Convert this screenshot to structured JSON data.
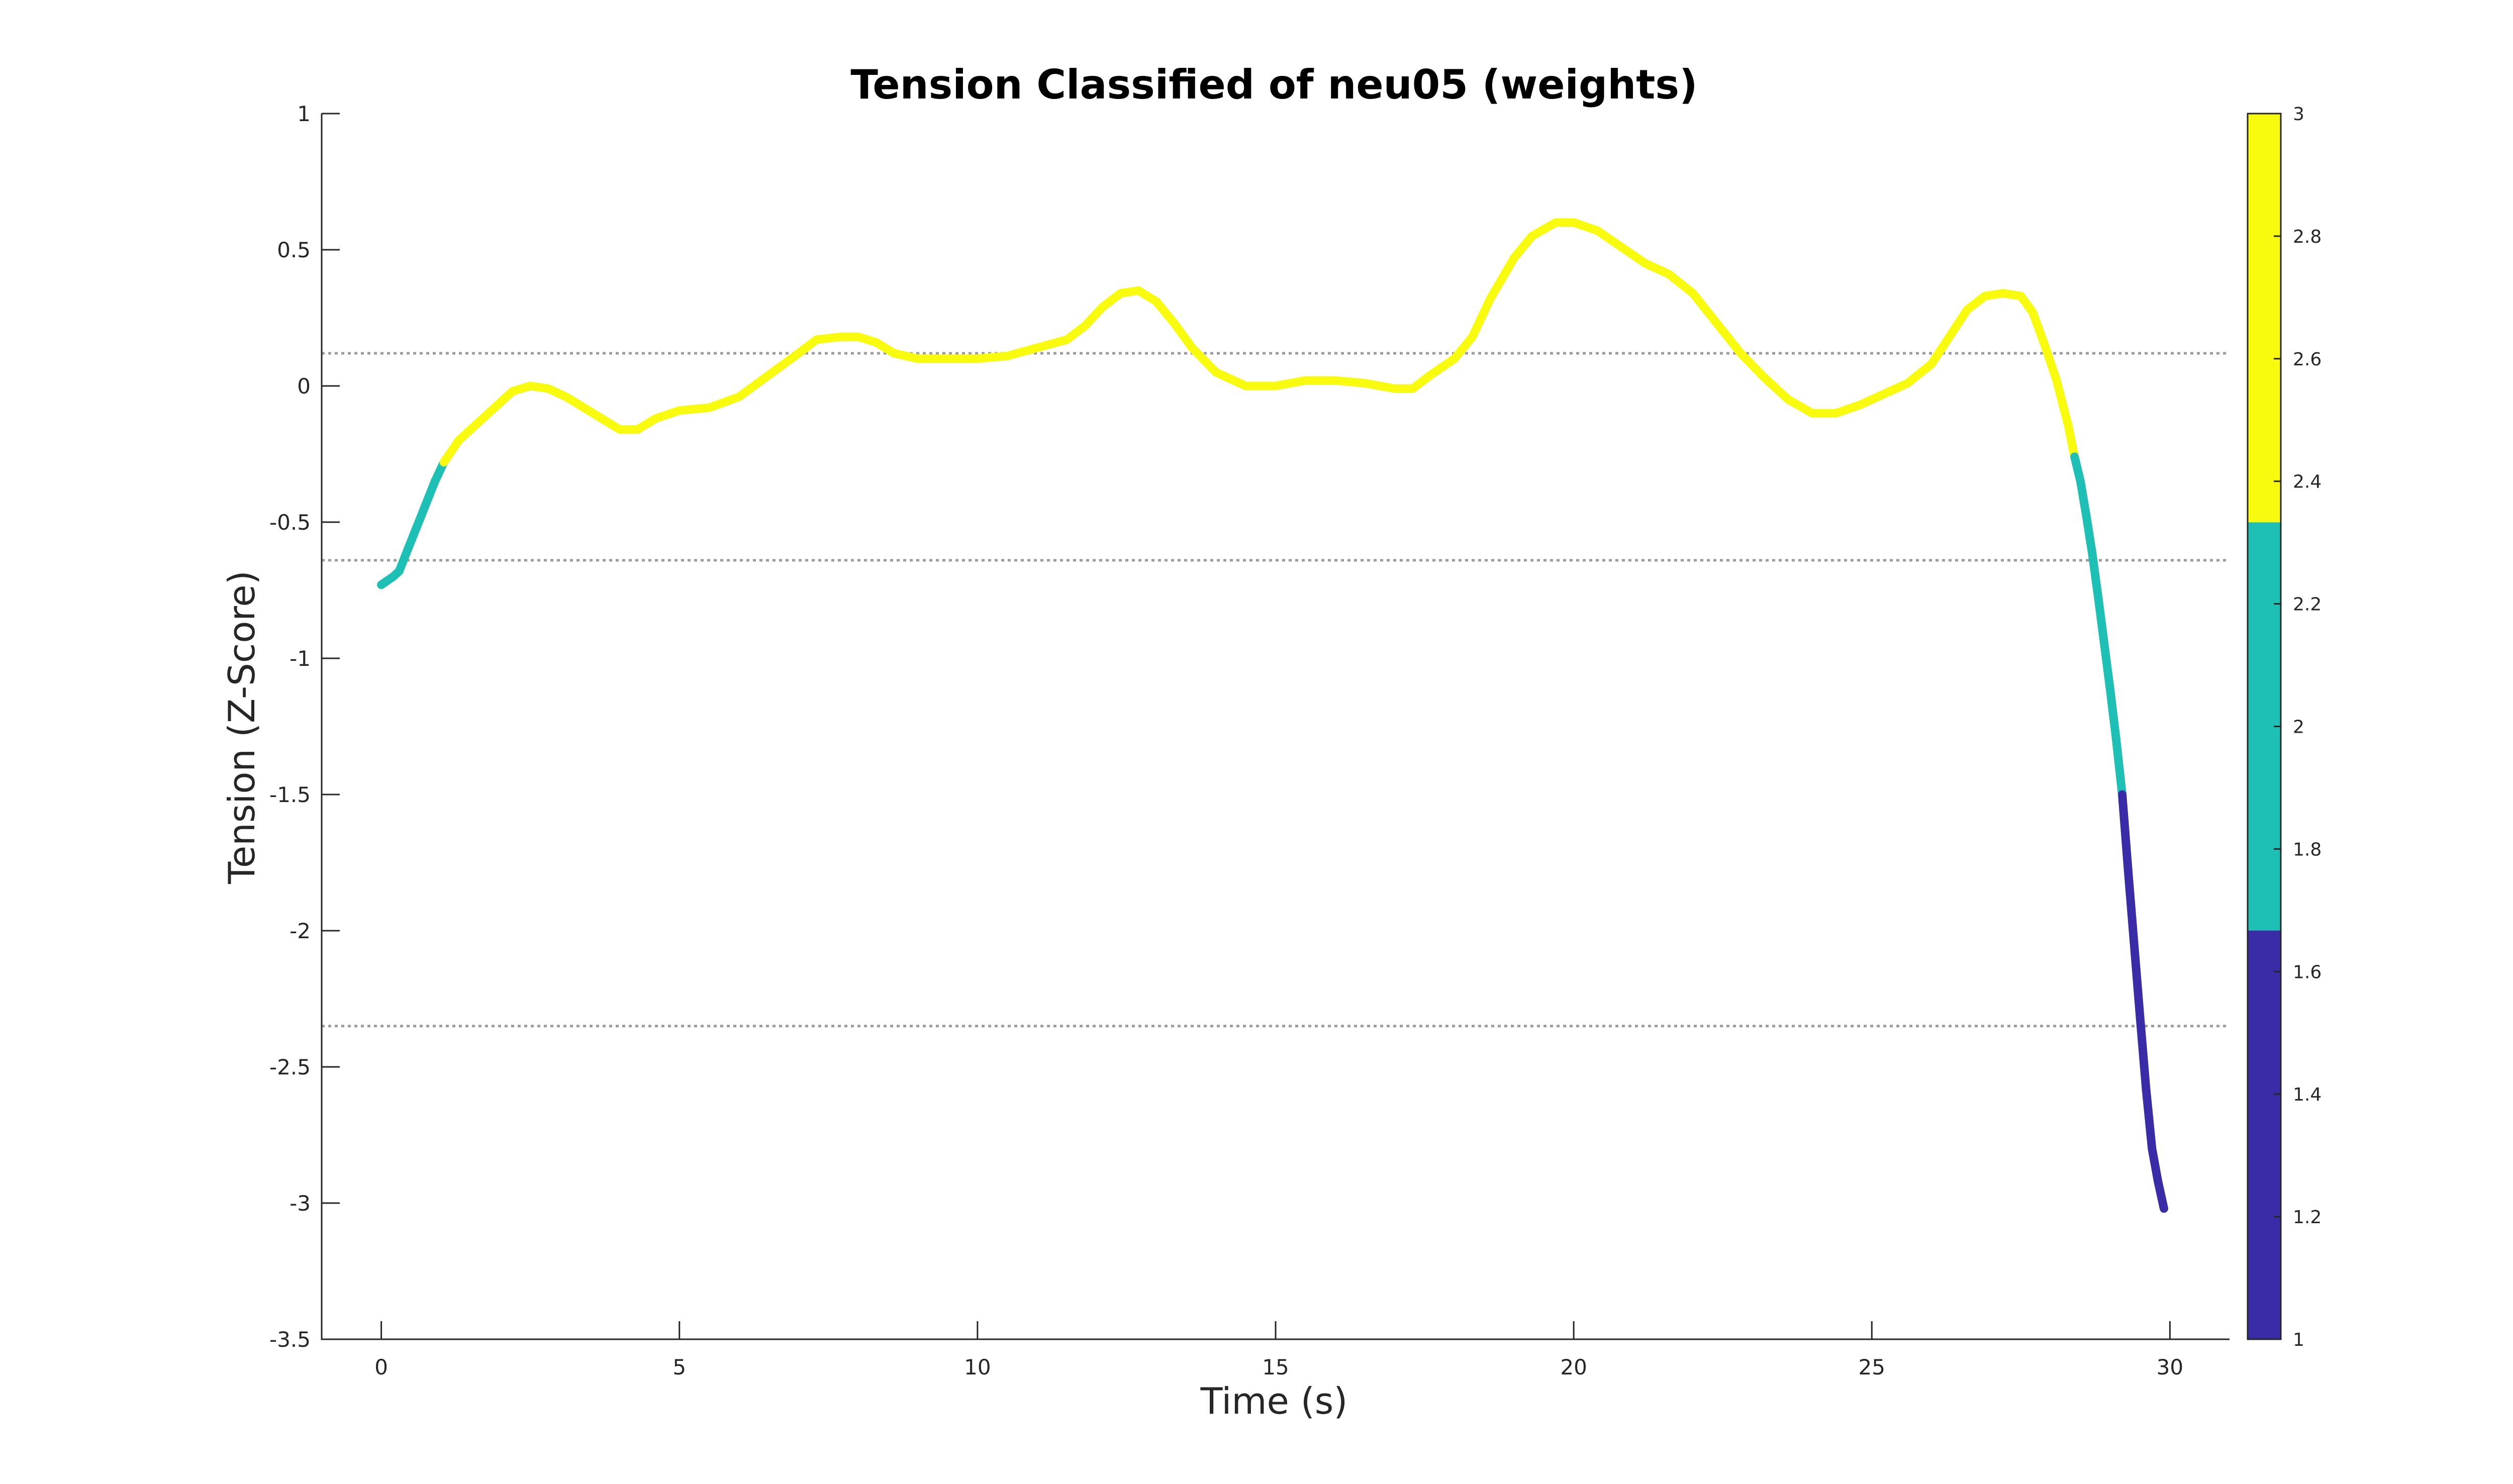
{
  "chart_data": {
    "type": "line",
    "title": "Tension Classified of neu05 (weights)",
    "xlabel": "Time (s)",
    "ylabel": "Tension (Z-Score)",
    "xlim": [
      -1,
      31
    ],
    "ylim": [
      -3.5,
      1
    ],
    "x_ticks": [
      0,
      5,
      10,
      15,
      20,
      25,
      30
    ],
    "y_ticks": [
      1,
      0.5,
      0,
      -0.5,
      -1,
      -1.5,
      -2,
      -2.5,
      -3,
      -3.5
    ],
    "grid": false,
    "thresholds": [
      0.12,
      -0.64,
      -2.35
    ],
    "colorbar": {
      "placement": "right",
      "range": [
        1,
        3
      ],
      "ticks": [
        3,
        2.8,
        2.6,
        2.4,
        2.2,
        2,
        1.8,
        1.6,
        1.4,
        1.2,
        1
      ],
      "bands": [
        {
          "from": 2.333,
          "to": 3,
          "color": "#f9fb0e"
        },
        {
          "from": 1.667,
          "to": 2.333,
          "color": "#1ebfb5"
        },
        {
          "from": 1,
          "to": 1.667,
          "color": "#3a2ba6"
        }
      ]
    },
    "series": [
      {
        "class": 2,
        "color": "#1ebfb5",
        "points": [
          [
            0,
            -0.73
          ],
          [
            0.2,
            -0.7
          ],
          [
            0.3,
            -0.68
          ],
          [
            0.5,
            -0.57
          ],
          [
            0.7,
            -0.46
          ],
          [
            0.9,
            -0.35
          ],
          [
            1.05,
            -0.28
          ]
        ]
      },
      {
        "class": 3,
        "color": "#f9fb0e",
        "points": [
          [
            1.05,
            -0.28
          ],
          [
            1.3,
            -0.2
          ],
          [
            1.6,
            -0.14
          ],
          [
            1.9,
            -0.08
          ],
          [
            2.2,
            -0.02
          ],
          [
            2.5,
            0.0
          ],
          [
            2.8,
            -0.01
          ],
          [
            3.1,
            -0.04
          ],
          [
            3.4,
            -0.08
          ],
          [
            3.7,
            -0.12
          ],
          [
            4.0,
            -0.16
          ],
          [
            4.3,
            -0.16
          ],
          [
            4.6,
            -0.12
          ],
          [
            5.0,
            -0.09
          ],
          [
            5.5,
            -0.08
          ],
          [
            6.0,
            -0.04
          ],
          [
            6.5,
            0.04
          ],
          [
            7.0,
            0.12
          ],
          [
            7.3,
            0.17
          ],
          [
            7.7,
            0.18
          ],
          [
            8.0,
            0.18
          ],
          [
            8.3,
            0.16
          ],
          [
            8.6,
            0.12
          ],
          [
            9.0,
            0.1
          ],
          [
            9.5,
            0.1
          ],
          [
            10.0,
            0.1
          ],
          [
            10.5,
            0.11
          ],
          [
            11.0,
            0.14
          ],
          [
            11.5,
            0.17
          ],
          [
            11.8,
            0.22
          ],
          [
            12.1,
            0.29
          ],
          [
            12.4,
            0.34
          ],
          [
            12.7,
            0.35
          ],
          [
            13.0,
            0.31
          ],
          [
            13.3,
            0.23
          ],
          [
            13.6,
            0.14
          ],
          [
            14.0,
            0.05
          ],
          [
            14.5,
            0.0
          ],
          [
            15.0,
            0.0
          ],
          [
            15.5,
            0.02
          ],
          [
            16.0,
            0.02
          ],
          [
            16.5,
            0.01
          ],
          [
            17.0,
            -0.01
          ],
          [
            17.3,
            -0.01
          ],
          [
            17.6,
            0.04
          ],
          [
            18.0,
            0.1
          ],
          [
            18.3,
            0.18
          ],
          [
            18.6,
            0.32
          ],
          [
            19.0,
            0.47
          ],
          [
            19.3,
            0.55
          ],
          [
            19.7,
            0.6
          ],
          [
            20.0,
            0.6
          ],
          [
            20.4,
            0.57
          ],
          [
            20.8,
            0.51
          ],
          [
            21.2,
            0.45
          ],
          [
            21.6,
            0.41
          ],
          [
            22.0,
            0.34
          ],
          [
            22.4,
            0.23
          ],
          [
            22.8,
            0.12
          ],
          [
            23.2,
            0.03
          ],
          [
            23.6,
            -0.05
          ],
          [
            24.0,
            -0.1
          ],
          [
            24.4,
            -0.1
          ],
          [
            24.8,
            -0.07
          ],
          [
            25.2,
            -0.03
          ],
          [
            25.6,
            0.01
          ],
          [
            26.0,
            0.08
          ],
          [
            26.3,
            0.18
          ],
          [
            26.6,
            0.28
          ],
          [
            26.9,
            0.33
          ],
          [
            27.2,
            0.34
          ],
          [
            27.5,
            0.33
          ],
          [
            27.7,
            0.27
          ],
          [
            27.9,
            0.15
          ],
          [
            28.1,
            0.02
          ],
          [
            28.3,
            -0.15
          ],
          [
            28.4,
            -0.26
          ]
        ]
      },
      {
        "class": 2,
        "color": "#1ebfb5",
        "points": [
          [
            28.4,
            -0.26
          ],
          [
            28.5,
            -0.35
          ],
          [
            28.6,
            -0.48
          ],
          [
            28.7,
            -0.62
          ],
          [
            28.8,
            -0.78
          ],
          [
            28.9,
            -0.95
          ],
          [
            29.0,
            -1.12
          ],
          [
            29.1,
            -1.3
          ],
          [
            29.2,
            -1.5
          ]
        ]
      },
      {
        "class": 1,
        "color": "#3a2ba6",
        "points": [
          [
            29.2,
            -1.5
          ],
          [
            29.3,
            -1.78
          ],
          [
            29.4,
            -2.05
          ],
          [
            29.5,
            -2.32
          ],
          [
            29.6,
            -2.58
          ],
          [
            29.7,
            -2.8
          ],
          [
            29.8,
            -2.92
          ],
          [
            29.9,
            -3.02
          ]
        ]
      }
    ]
  }
}
